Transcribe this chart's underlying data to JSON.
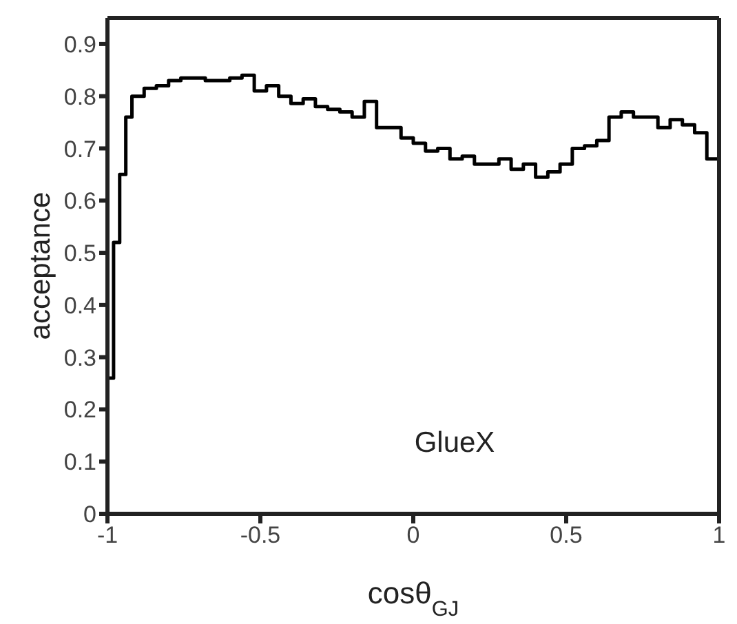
{
  "chart_data": {
    "type": "histogram",
    "xlabel": "cosθ$_{GJ}$",
    "ylabel": "acceptance",
    "annotations": [
      "GlueX"
    ],
    "color": "#000000",
    "bins": [
      -1,
      -0.98,
      -0.96,
      -0.94,
      -0.92,
      -0.88,
      -0.84,
      -0.8,
      -0.76,
      -0.72,
      -0.68,
      -0.64,
      -0.6,
      -0.56,
      -0.52,
      -0.48,
      -0.44,
      -0.4,
      -0.36,
      -0.32,
      -0.28,
      -0.24,
      -0.2,
      -0.16,
      -0.12,
      -0.08,
      -0.04,
      0,
      0.04,
      0.08,
      0.12,
      0.16,
      0.2,
      0.24,
      0.28,
      0.32,
      0.36,
      0.4,
      0.44,
      0.48,
      0.52,
      0.56,
      0.6,
      0.64,
      0.68,
      0.72,
      0.76,
      0.8,
      0.84,
      0.88,
      0.92,
      0.96,
      1
    ],
    "values": [
      0.26,
      0.52,
      0.65,
      0.76,
      0.8,
      0.815,
      0.82,
      0.83,
      0.835,
      0.835,
      0.83,
      0.83,
      0.835,
      0.84,
      0.81,
      0.82,
      0.8,
      0.786,
      0.795,
      0.78,
      0.775,
      0.77,
      0.76,
      0.79,
      0.74,
      0.74,
      0.72,
      0.71,
      0.695,
      0.7,
      0.68,
      0.685,
      0.67,
      0.67,
      0.68,
      0.66,
      0.67,
      0.645,
      0.655,
      0.67,
      0.7,
      0.705,
      0.715,
      0.76,
      0.77,
      0.76,
      0.76,
      0.74,
      0.755,
      0.745,
      0.73,
      0.68
    ],
    "xlim": [
      -1,
      1
    ],
    "xticks": [
      -1,
      -0.5,
      0,
      0.5,
      1
    ],
    "ylim": [
      0,
      0.95
    ],
    "yticks": [
      0,
      0.1,
      0.2,
      0.3,
      0.4,
      0.5,
      0.6,
      0.7,
      0.8,
      0.9
    ]
  }
}
